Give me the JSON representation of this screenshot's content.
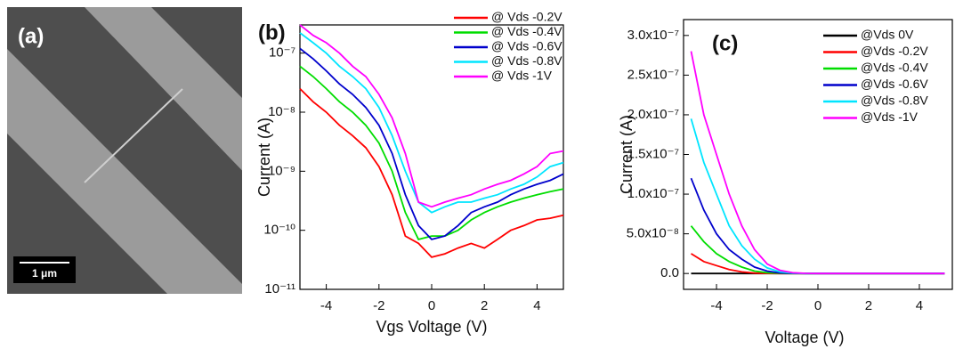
{
  "image_panel": {
    "label": "(a)",
    "scale_bar": "1 μm"
  },
  "chart_data": [
    {
      "type": "line",
      "panel_label": "(b)",
      "xlabel": "Vgs Voltage (V)",
      "ylabel": "Current (A)",
      "log_y": true,
      "legend": "upper right",
      "x": [
        -5,
        -4.5,
        -4,
        -3.5,
        -3,
        -2.5,
        -2,
        -1.5,
        -1,
        -0.5,
        0,
        0.5,
        1,
        1.5,
        2,
        2.5,
        3,
        3.5,
        4,
        4.5,
        5
      ],
      "series": [
        {
          "name": "@ Vds -0.2V",
          "color": "#ff0000",
          "values": [
            2.5e-08,
            1.5e-08,
            1e-08,
            6e-09,
            4e-09,
            2.5e-09,
            1.2e-09,
            4e-10,
            8e-11,
            6e-11,
            3.5e-11,
            4e-11,
            5e-11,
            6e-11,
            5e-11,
            7e-11,
            1e-10,
            1.2e-10,
            1.5e-10,
            1.6e-10,
            1.8e-10
          ]
        },
        {
          "name": "@ Vds -0.4V",
          "color": "#00dd00",
          "values": [
            6e-08,
            4e-08,
            2.5e-08,
            1.5e-08,
            1e-08,
            6e-09,
            3e-09,
            1e-09,
            2e-10,
            7e-11,
            8e-11,
            8e-11,
            1e-10,
            1.5e-10,
            2e-10,
            2.5e-10,
            3e-10,
            3.5e-10,
            4e-10,
            4.5e-10,
            5e-10
          ]
        },
        {
          "name": "@ Vds -0.6V",
          "color": "#0000cc",
          "values": [
            1.2e-07,
            8e-08,
            5e-08,
            3e-08,
            2e-08,
            1.2e-08,
            6e-09,
            2e-09,
            4e-10,
            1.2e-10,
            7e-11,
            8e-11,
            1.2e-10,
            2e-10,
            2.5e-10,
            3e-10,
            4e-10,
            5e-10,
            6e-10,
            7e-10,
            9e-10
          ]
        },
        {
          "name": "@ Vds -0.8V",
          "color": "#00e5ff",
          "values": [
            2.2e-07,
            1.5e-07,
            1e-07,
            6e-08,
            4e-08,
            2.5e-08,
            1.2e-08,
            4e-09,
            1e-09,
            3e-10,
            2e-10,
            2.5e-10,
            3e-10,
            3e-10,
            3.5e-10,
            4e-10,
            5e-10,
            6e-10,
            8e-10,
            1.2e-09,
            1.4e-09
          ]
        },
        {
          "name": "@ Vds -1V",
          "color": "#ff00ff",
          "values": [
            3e-07,
            2e-07,
            1.5e-07,
            1e-07,
            6e-08,
            4e-08,
            2e-08,
            8e-09,
            2e-09,
            3e-10,
            2.5e-10,
            3e-10,
            3.5e-10,
            4e-10,
            5e-10,
            6e-10,
            7e-10,
            9e-10,
            1.2e-09,
            2e-09,
            2.2e-09
          ]
        }
      ],
      "xlim": [
        -5,
        5
      ],
      "xticks": [
        -4,
        -2,
        0,
        2,
        4
      ],
      "ylim": [
        1e-11,
        3e-07
      ],
      "yticks": [
        {
          "value": 1e-11,
          "label": "10⁻¹¹"
        },
        {
          "value": 1e-10,
          "label": "10⁻¹⁰"
        },
        {
          "value": 1e-09,
          "label": "10⁻⁹"
        },
        {
          "value": 1e-08,
          "label": "10⁻⁸"
        },
        {
          "value": 1e-07,
          "label": "10⁻⁷"
        }
      ]
    },
    {
      "type": "line",
      "panel_label": "(c)",
      "xlabel": "Voltage (V)",
      "ylabel": "Current (A)",
      "log_y": false,
      "legend": "upper right",
      "x": [
        -5,
        -4.5,
        -4,
        -3.5,
        -3,
        -2.5,
        -2,
        -1.5,
        -1,
        -0.5,
        0,
        0.5,
        1,
        1.5,
        2,
        2.5,
        3,
        3.5,
        4,
        4.5,
        5
      ],
      "series": [
        {
          "name": "@Vds 0V",
          "color": "#000000",
          "values": [
            0,
            0,
            0,
            0,
            0,
            0,
            0,
            0,
            0,
            0,
            0,
            0,
            0,
            0,
            0,
            0,
            0,
            0,
            0,
            0,
            0
          ]
        },
        {
          "name": "@Vds -0.2V",
          "color": "#ff0000",
          "values": [
            2.5e-08,
            1.5e-08,
            1e-08,
            5e-09,
            2e-09,
            5e-10,
            1e-10,
            0,
            0,
            0,
            0,
            0,
            0,
            0,
            0,
            0,
            0,
            0,
            0,
            0,
            0
          ]
        },
        {
          "name": "@Vds -0.4V",
          "color": "#00dd00",
          "values": [
            6e-08,
            4e-08,
            2.5e-08,
            1.5e-08,
            8e-09,
            3e-09,
            1e-09,
            3e-10,
            0,
            0,
            0,
            0,
            0,
            0,
            0,
            0,
            0,
            0,
            0,
            0,
            0
          ]
        },
        {
          "name": "@Vds -0.6V",
          "color": "#0000cc",
          "values": [
            1.2e-07,
            8e-08,
            5e-08,
            3e-08,
            1.8e-08,
            8e-09,
            3e-09,
            8e-10,
            2e-10,
            0,
            0,
            0,
            0,
            0,
            0,
            0,
            0,
            0,
            0,
            0,
            0
          ]
        },
        {
          "name": "@Vds -0.8V",
          "color": "#00e5ff",
          "values": [
            1.95e-07,
            1.4e-07,
            1e-07,
            6e-08,
            3.5e-08,
            1.8e-08,
            7e-09,
            2e-09,
            5e-10,
            0,
            0,
            0,
            0,
            0,
            0,
            0,
            0,
            0,
            0,
            0,
            0
          ]
        },
        {
          "name": "@Vds -1V",
          "color": "#ff00ff",
          "values": [
            2.8e-07,
            2e-07,
            1.5e-07,
            1e-07,
            6e-08,
            3e-08,
            1.2e-08,
            4e-09,
            1e-09,
            2e-10,
            0,
            0,
            0,
            0,
            0,
            0,
            0,
            0,
            0,
            0,
            0
          ]
        }
      ],
      "xlim": [
        -5.3,
        5.3
      ],
      "xticks": [
        -4,
        -2,
        0,
        2,
        4
      ],
      "ylim": [
        -2e-08,
        3.2e-07
      ],
      "yticks": [
        {
          "value": 0,
          "label": "0.0"
        },
        {
          "value": 5e-08,
          "label": "5.0x10⁻⁸"
        },
        {
          "value": 1e-07,
          "label": "1.0x10⁻⁷"
        },
        {
          "value": 1.5e-07,
          "label": "1.5x10⁻⁷"
        },
        {
          "value": 2e-07,
          "label": "2.0x10⁻⁷"
        },
        {
          "value": 2.5e-07,
          "label": "2.5x10⁻⁷"
        },
        {
          "value": 3e-07,
          "label": "3.0x10⁻⁷"
        }
      ]
    }
  ]
}
